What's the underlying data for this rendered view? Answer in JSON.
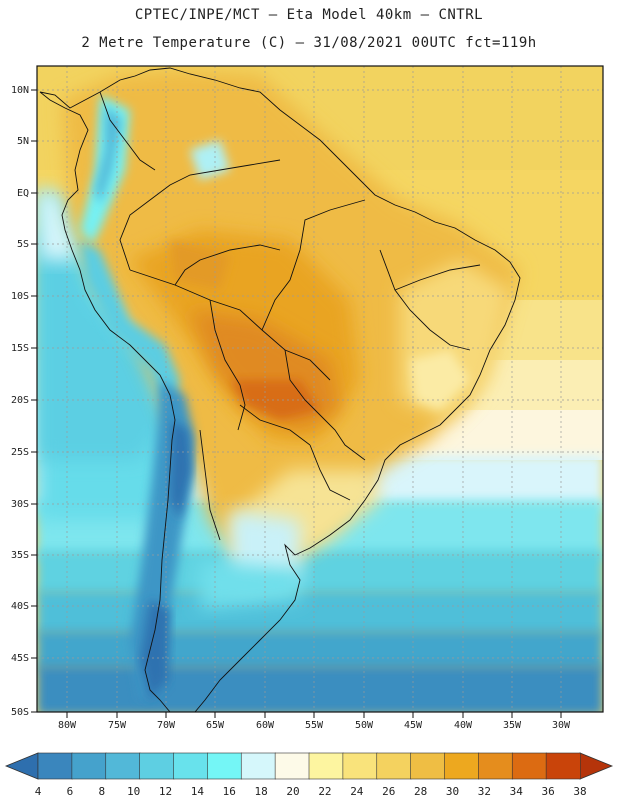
{
  "header": {
    "line1": "CPTEC/INPE/MCT –  Eta Model 40km – CNTRL",
    "line2": "2 Metre Temperature (C) – 31/08/2021 00UTC fct=119h"
  },
  "map": {
    "lat_ticks": [
      "10N",
      "5N",
      "EQ",
      "5S",
      "10S",
      "15S",
      "20S",
      "25S",
      "30S",
      "35S",
      "40S",
      "45S",
      "50S"
    ],
    "lon_ticks": [
      "80W",
      "75W",
      "70W",
      "65W",
      "60W",
      "55W",
      "50W",
      "45W",
      "40W",
      "35W",
      "30W"
    ],
    "lat_range": [
      -50,
      12
    ],
    "lon_range": [
      -83,
      -26
    ]
  },
  "colorbar": {
    "labels": [
      "4",
      "6",
      "8",
      "10",
      "12",
      "14",
      "16",
      "18",
      "20",
      "22",
      "24",
      "26",
      "28",
      "30",
      "32",
      "34",
      "36",
      "38"
    ],
    "colors": [
      "#2e6fae",
      "#3a86bd",
      "#45a2cc",
      "#52b8d8",
      "#5ecfe2",
      "#68e2ec",
      "#74f6f6",
      "#d5f7fb",
      "#fdfae8",
      "#fdf5a0",
      "#f9e37b",
      "#f4d25f",
      "#efbe44",
      "#eda81f",
      "#e58d1d",
      "#dc6b12",
      "#c9440a",
      "#b5340a"
    ]
  }
}
